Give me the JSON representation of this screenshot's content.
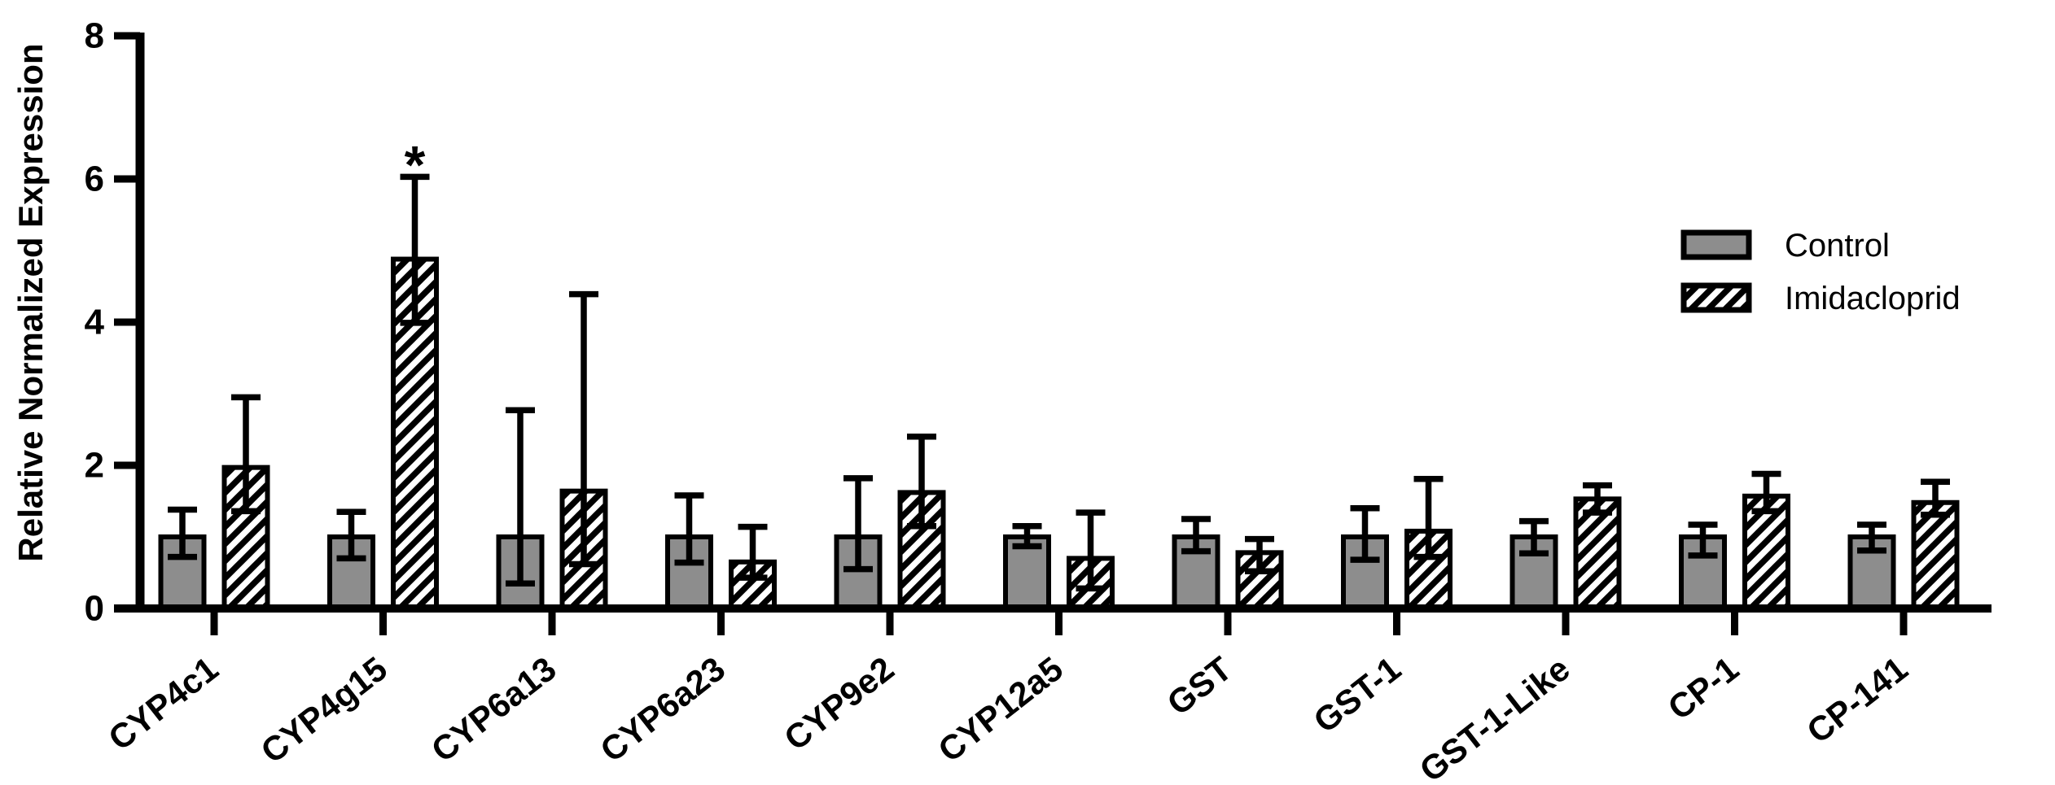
{
  "figure": {
    "background": "#ffffff",
    "axis_color": "#000000",
    "bar_fill_gray": "#8d8d8d",
    "hatch_stripe_color": "#000000",
    "hatch_background": "#ffffff"
  },
  "chart_data": {
    "type": "bar",
    "title": "",
    "xlabel": "",
    "ylabel": "Relative Normalized Expression",
    "ylim": [
      0,
      8
    ],
    "yticks": [
      0,
      2,
      4,
      6,
      8
    ],
    "grid": false,
    "legend_position": "upper right",
    "categories": [
      "CYP4c1",
      "CYP4g15",
      "CYP6a13",
      "CYP6a23",
      "CYP9e2",
      "CYP12a5",
      "GST",
      "GST-1",
      "GST-1-Like",
      "CP-1",
      "CP-141"
    ],
    "series": [
      {
        "name": "Control",
        "style": "solid-gray",
        "values": [
          1.0,
          1.0,
          1.0,
          1.0,
          1.0,
          1.0,
          1.0,
          1.0,
          1.0,
          1.0,
          1.0
        ],
        "err_up": [
          0.38,
          0.35,
          1.77,
          0.58,
          0.82,
          0.15,
          0.25,
          0.4,
          0.22,
          0.17,
          0.17
        ],
        "err_down": [
          0.28,
          0.3,
          0.65,
          0.36,
          0.45,
          0.13,
          0.2,
          0.32,
          0.23,
          0.26,
          0.19
        ]
      },
      {
        "name": "Imidacloprid",
        "style": "hatched",
        "values": [
          1.97,
          4.88,
          1.64,
          0.65,
          1.62,
          0.7,
          0.78,
          1.08,
          1.53,
          1.57,
          1.48
        ],
        "err_up": [
          0.98,
          1.15,
          2.75,
          0.49,
          0.78,
          0.64,
          0.19,
          0.73,
          0.19,
          0.31,
          0.29
        ],
        "err_down": [
          0.61,
          0.89,
          1.02,
          0.22,
          0.47,
          0.42,
          0.26,
          0.36,
          0.19,
          0.21,
          0.17
        ]
      }
    ],
    "annotations": [
      {
        "text": "*",
        "category": "CYP4g15",
        "series": "Imidacloprid",
        "y": 6.45
      }
    ]
  },
  "legend": {
    "items": [
      {
        "label": "Control",
        "swatch": "solid-gray"
      },
      {
        "label": "Imidacloprid",
        "swatch": "hatched"
      }
    ]
  }
}
